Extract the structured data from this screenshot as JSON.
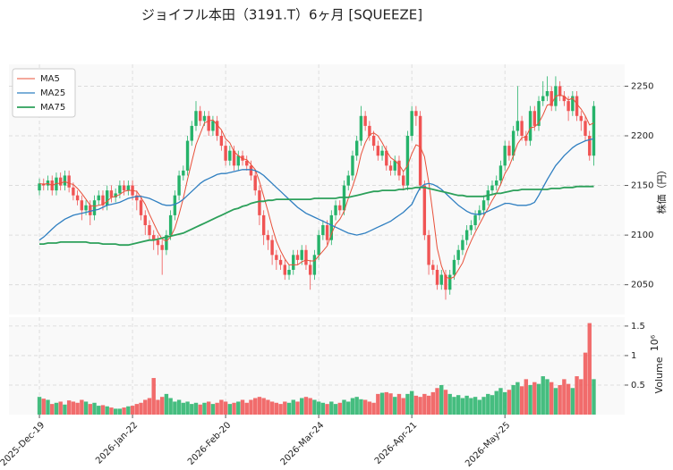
{
  "chart_data": {
    "type": "candlestick",
    "title": "ジョイフル本田（3191.T）6ヶ月 [SQUEEZE]",
    "ylabel": "株価（円）",
    "volume_label": "Volume",
    "volume_offset": "10⁶",
    "up_color": "#26b36a",
    "down_color": "#f05454",
    "legend": "upper left",
    "grid": true,
    "xlim": [
      -7.2,
      138.3
    ],
    "xticks": [
      {
        "value": 0,
        "label": "2025-Dec-19"
      },
      {
        "value": 22,
        "label": "2026-Jan-22"
      },
      {
        "value": 44,
        "label": "2026-Feb-20"
      },
      {
        "value": 66,
        "label": "2026-Mar-24"
      },
      {
        "value": 88,
        "label": "2026-Apr-21"
      },
      {
        "value": 110,
        "label": "2026-May-25"
      }
    ],
    "ylim": [
      2020,
      2272
    ],
    "yticks": [
      2050,
      2100,
      2150,
      2200,
      2250
    ],
    "volume_ylim": [
      0,
      1.65
    ],
    "volume_yticks": [
      0.5,
      1.0,
      1.5
    ],
    "open": [
      2145,
      2152,
      2150,
      2155,
      2145,
      2158,
      2150,
      2160,
      2148,
      2140,
      2135,
      2125,
      2130,
      2120,
      2135,
      2140,
      2130,
      2145,
      2138,
      2142,
      2150,
      2145,
      2150,
      2140,
      2135,
      2120,
      2110,
      2100,
      2095,
      2090,
      2085,
      2100,
      2120,
      2140,
      2160,
      2165,
      2195,
      2210,
      2225,
      2215,
      2220,
      2205,
      2215,
      2200,
      2190,
      2175,
      2185,
      2170,
      2180,
      2175,
      2170,
      2160,
      2145,
      2120,
      2100,
      2095,
      2080,
      2075,
      2070,
      2060,
      2065,
      2080,
      2075,
      2085,
      2070,
      2060,
      2080,
      2100,
      2110,
      2095,
      2120,
      2130,
      2125,
      2150,
      2160,
      2180,
      2195,
      2220,
      2210,
      2200,
      2190,
      2180,
      2185,
      2170,
      2165,
      2175,
      2160,
      2150,
      2200,
      2225,
      2220,
      2150,
      2100,
      2070,
      2065,
      2050,
      2060,
      2045,
      2060,
      2075,
      2085,
      2095,
      2105,
      2110,
      2120,
      2125,
      2135,
      2145,
      2150,
      2155,
      2170,
      2190,
      2180,
      2205,
      2215,
      2200,
      2195,
      2225,
      2210,
      2235,
      2240,
      2245,
      2230,
      2250,
      2240,
      2235,
      2225,
      2240,
      2220,
      2215,
      2200,
      2180
    ],
    "high": [
      2157,
      2157,
      2160,
      2160,
      2163,
      2163,
      2165,
      2165,
      2153,
      2145,
      2140,
      2135,
      2135,
      2140,
      2145,
      2145,
      2150,
      2150,
      2147,
      2155,
      2155,
      2155,
      2155,
      2145,
      2140,
      2125,
      2115,
      2105,
      2100,
      2095,
      2105,
      2125,
      2145,
      2165,
      2170,
      2200,
      2215,
      2235,
      2230,
      2225,
      2225,
      2220,
      2220,
      2205,
      2195,
      2190,
      2190,
      2185,
      2185,
      2180,
      2175,
      2165,
      2150,
      2125,
      2105,
      2100,
      2085,
      2080,
      2075,
      2070,
      2085,
      2085,
      2090,
      2090,
      2075,
      2085,
      2105,
      2115,
      2115,
      2125,
      2135,
      2135,
      2155,
      2165,
      2185,
      2200,
      2230,
      2225,
      2215,
      2205,
      2195,
      2190,
      2190,
      2175,
      2180,
      2180,
      2165,
      2205,
      2230,
      2230,
      2225,
      2155,
      2105,
      2075,
      2070,
      2065,
      2065,
      2065,
      2080,
      2090,
      2100,
      2110,
      2115,
      2125,
      2130,
      2140,
      2150,
      2155,
      2160,
      2175,
      2195,
      2195,
      2210,
      2250,
      2220,
      2205,
      2230,
      2230,
      2240,
      2255,
      2260,
      2250,
      2260,
      2255,
      2245,
      2240,
      2245,
      2245,
      2225,
      2220,
      2205,
      2235
    ],
    "low": [
      2140,
      2145,
      2145,
      2140,
      2140,
      2145,
      2145,
      2143,
      2135,
      2130,
      2115,
      2120,
      2110,
      2115,
      2130,
      2125,
      2125,
      2133,
      2133,
      2137,
      2140,
      2140,
      2135,
      2125,
      2115,
      2100,
      2095,
      2085,
      2080,
      2060,
      2080,
      2095,
      2115,
      2135,
      2155,
      2160,
      2190,
      2205,
      2210,
      2210,
      2200,
      2200,
      2195,
      2185,
      2170,
      2170,
      2165,
      2165,
      2170,
      2165,
      2155,
      2140,
      2110,
      2090,
      2085,
      2070,
      2065,
      2065,
      2055,
      2055,
      2060,
      2070,
      2070,
      2065,
      2045,
      2055,
      2075,
      2095,
      2090,
      2090,
      2115,
      2120,
      2120,
      2145,
      2155,
      2175,
      2190,
      2205,
      2195,
      2185,
      2175,
      2175,
      2165,
      2160,
      2160,
      2155,
      2145,
      2145,
      2195,
      2210,
      2145,
      2095,
      2060,
      2060,
      2045,
      2045,
      2035,
      2040,
      2055,
      2070,
      2080,
      2090,
      2100,
      2105,
      2115,
      2120,
      2130,
      2140,
      2145,
      2150,
      2165,
      2175,
      2175,
      2200,
      2195,
      2190,
      2190,
      2205,
      2205,
      2230,
      2235,
      2225,
      2225,
      2235,
      2230,
      2215,
      2220,
      2215,
      2205,
      2195,
      2175,
      2170
    ],
    "close": [
      2152,
      2150,
      2155,
      2145,
      2158,
      2150,
      2160,
      2148,
      2140,
      2135,
      2125,
      2130,
      2120,
      2135,
      2140,
      2130,
      2145,
      2138,
      2142,
      2150,
      2145,
      2150,
      2140,
      2135,
      2120,
      2110,
      2100,
      2095,
      2090,
      2085,
      2100,
      2120,
      2140,
      2160,
      2165,
      2195,
      2210,
      2225,
      2215,
      2220,
      2205,
      2215,
      2200,
      2190,
      2175,
      2185,
      2170,
      2180,
      2175,
      2170,
      2160,
      2145,
      2120,
      2100,
      2095,
      2080,
      2075,
      2070,
      2060,
      2065,
      2080,
      2075,
      2085,
      2070,
      2060,
      2080,
      2100,
      2110,
      2095,
      2120,
      2130,
      2125,
      2150,
      2160,
      2180,
      2195,
      2220,
      2210,
      2200,
      2190,
      2180,
      2185,
      2170,
      2165,
      2175,
      2160,
      2150,
      2200,
      2225,
      2220,
      2150,
      2100,
      2070,
      2065,
      2050,
      2060,
      2045,
      2060,
      2075,
      2085,
      2095,
      2105,
      2110,
      2120,
      2125,
      2135,
      2145,
      2150,
      2155,
      2170,
      2190,
      2180,
      2205,
      2215,
      2200,
      2195,
      2225,
      2210,
      2235,
      2240,
      2245,
      2230,
      2250,
      2240,
      2235,
      2225,
      2240,
      2220,
      2215,
      2200,
      2180,
      2230
    ],
    "volume": [
      0.3,
      0.27,
      0.25,
      0.18,
      0.2,
      0.22,
      0.17,
      0.24,
      0.22,
      0.2,
      0.25,
      0.22,
      0.18,
      0.2,
      0.15,
      0.16,
      0.14,
      0.12,
      0.1,
      0.1,
      0.12,
      0.14,
      0.15,
      0.18,
      0.2,
      0.25,
      0.28,
      0.62,
      0.25,
      0.3,
      0.35,
      0.28,
      0.22,
      0.25,
      0.2,
      0.22,
      0.18,
      0.2,
      0.17,
      0.2,
      0.22,
      0.18,
      0.2,
      0.25,
      0.22,
      0.18,
      0.2,
      0.22,
      0.25,
      0.2,
      0.25,
      0.28,
      0.3,
      0.28,
      0.25,
      0.22,
      0.2,
      0.18,
      0.22,
      0.2,
      0.25,
      0.22,
      0.28,
      0.3,
      0.28,
      0.25,
      0.22,
      0.2,
      0.18,
      0.22,
      0.18,
      0.2,
      0.25,
      0.22,
      0.28,
      0.3,
      0.26,
      0.25,
      0.22,
      0.2,
      0.35,
      0.37,
      0.38,
      0.36,
      0.3,
      0.35,
      0.28,
      0.35,
      0.4,
      0.32,
      0.3,
      0.35,
      0.32,
      0.38,
      0.45,
      0.5,
      0.42,
      0.35,
      0.3,
      0.33,
      0.28,
      0.32,
      0.28,
      0.3,
      0.25,
      0.3,
      0.35,
      0.33,
      0.4,
      0.45,
      0.38,
      0.42,
      0.5,
      0.55,
      0.48,
      0.6,
      0.5,
      0.55,
      0.52,
      0.65,
      0.6,
      0.55,
      0.45,
      0.5,
      0.6,
      0.52,
      0.45,
      0.65,
      0.6,
      1.05,
      1.55,
      0.6
    ],
    "series": [
      {
        "name": "MA5",
        "color": "#e8503a",
        "width": 1,
        "values": [
          2152,
          2151,
          2152,
          2150,
          2152,
          2152,
          2154,
          2152,
          2151,
          2147,
          2142,
          2136,
          2130,
          2129,
          2130,
          2131,
          2134,
          2138,
          2139,
          2141,
          2144,
          2145,
          2145,
          2144,
          2138,
          2131,
          2121,
          2112,
          2103,
          2096,
          2094,
          2098,
          2107,
          2121,
          2137,
          2156,
          2174,
          2191,
          2202,
          2213,
          2215,
          2216,
          2211,
          2206,
          2197,
          2193,
          2184,
          2180,
          2177,
          2176,
          2171,
          2166,
          2154,
          2139,
          2124,
          2108,
          2094,
          2084,
          2076,
          2070,
          2070,
          2070,
          2073,
          2075,
          2074,
          2074,
          2079,
          2084,
          2089,
          2101,
          2111,
          2116,
          2124,
          2137,
          2149,
          2162,
          2181,
          2193,
          2201,
          2203,
          2200,
          2193,
          2185,
          2178,
          2175,
          2171,
          2164,
          2170,
          2182,
          2191,
          2189,
          2179,
          2153,
          2121,
          2087,
          2069,
          2058,
          2056,
          2058,
          2065,
          2072,
          2084,
          2094,
          2103,
          2111,
          2119,
          2127,
          2135,
          2142,
          2151,
          2162,
          2169,
          2180,
          2192,
          2198,
          2199,
          2208,
          2209,
          2213,
          2221,
          2231,
          2232,
          2240,
          2241,
          2240,
          2236,
          2238,
          2232,
          2227,
          2220,
          2211,
          2213
        ]
      },
      {
        "name": "MA25",
        "color": "#2f7fc1",
        "width": 1.3,
        "values": [
          2095,
          2098,
          2102,
          2106,
          2110,
          2113,
          2116,
          2118,
          2120,
          2121,
          2122,
          2123,
          2124,
          2125,
          2126,
          2128,
          2130,
          2131,
          2132,
          2133,
          2135,
          2137,
          2138,
          2139,
          2139,
          2138,
          2137,
          2135,
          2133,
          2131,
          2130,
          2130,
          2131,
          2133,
          2136,
          2140,
          2144,
          2148,
          2152,
          2155,
          2157,
          2159,
          2161,
          2162,
          2162,
          2163,
          2164,
          2165,
          2166,
          2166,
          2166,
          2165,
          2163,
          2160,
          2156,
          2152,
          2148,
          2144,
          2140,
          2136,
          2132,
          2128,
          2125,
          2122,
          2120,
          2118,
          2116,
          2114,
          2112,
          2110,
          2108,
          2106,
          2104,
          2102,
          2101,
          2100,
          2101,
          2102,
          2104,
          2106,
          2108,
          2110,
          2112,
          2114,
          2117,
          2120,
          2123,
          2127,
          2131,
          2140,
          2148,
          2151,
          2152,
          2151,
          2149,
          2146,
          2142,
          2138,
          2134,
          2130,
          2127,
          2124,
          2122,
          2121,
          2121,
          2122,
          2124,
          2126,
          2128,
          2130,
          2132,
          2132,
          2131,
          2130,
          2130,
          2130,
          2131,
          2133,
          2140,
          2148,
          2156,
          2163,
          2170,
          2175,
          2180,
          2184,
          2188,
          2191,
          2193,
          2195,
          2196,
          2197
        ]
      },
      {
        "name": "MA75",
        "color": "#2ca05a",
        "width": 1.8,
        "values": [
          2091,
          2091,
          2092,
          2092,
          2092,
          2093,
          2093,
          2093,
          2093,
          2093,
          2093,
          2093,
          2092,
          2092,
          2092,
          2091,
          2091,
          2091,
          2091,
          2090,
          2090,
          2090,
          2091,
          2092,
          2093,
          2094,
          2095,
          2095,
          2096,
          2097,
          2098,
          2099,
          2100,
          2101,
          2102,
          2104,
          2106,
          2108,
          2110,
          2112,
          2114,
          2116,
          2118,
          2120,
          2122,
          2124,
          2126,
          2127,
          2129,
          2130,
          2132,
          2133,
          2134,
          2134,
          2135,
          2135,
          2136,
          2136,
          2136,
          2136,
          2136,
          2136,
          2136,
          2136,
          2136,
          2137,
          2137,
          2137,
          2137,
          2137,
          2137,
          2138,
          2138,
          2138,
          2139,
          2140,
          2141,
          2142,
          2143,
          2144,
          2144,
          2145,
          2145,
          2145,
          2145,
          2146,
          2146,
          2147,
          2147,
          2148,
          2148,
          2148,
          2147,
          2146,
          2145,
          2144,
          2143,
          2142,
          2141,
          2140,
          2140,
          2139,
          2139,
          2139,
          2139,
          2139,
          2140,
          2141,
          2142,
          2142,
          2143,
          2144,
          2145,
          2145,
          2146,
          2146,
          2146,
          2146,
          2146,
          2146,
          2146,
          2147,
          2147,
          2147,
          2148,
          2148,
          2148,
          2149,
          2149,
          2149,
          2149,
          2149
        ]
      }
    ]
  }
}
